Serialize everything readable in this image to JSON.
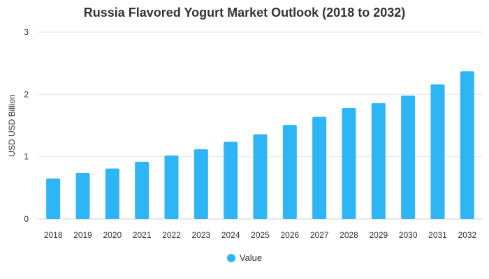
{
  "chart_data": {
    "type": "bar",
    "title": "Russia Flavored Yogurt Market Outlook (2018 to 2032)",
    "xlabel": "",
    "ylabel": "USD USD Billion",
    "categories": [
      "2018",
      "2019",
      "2020",
      "2021",
      "2022",
      "2023",
      "2024",
      "2025",
      "2026",
      "2027",
      "2028",
      "2029",
      "2030",
      "2031",
      "2032"
    ],
    "series": [
      {
        "name": "Value",
        "values": [
          0.65,
          0.74,
          0.81,
          0.92,
          1.02,
          1.12,
          1.24,
          1.36,
          1.51,
          1.64,
          1.78,
          1.86,
          1.98,
          2.16,
          2.37
        ]
      }
    ],
    "ylim": [
      0,
      3
    ],
    "yticks": [
      "0",
      "1",
      "2",
      "3"
    ],
    "grid": true,
    "legend": "bottom-center",
    "color": "#2eb5f6"
  }
}
